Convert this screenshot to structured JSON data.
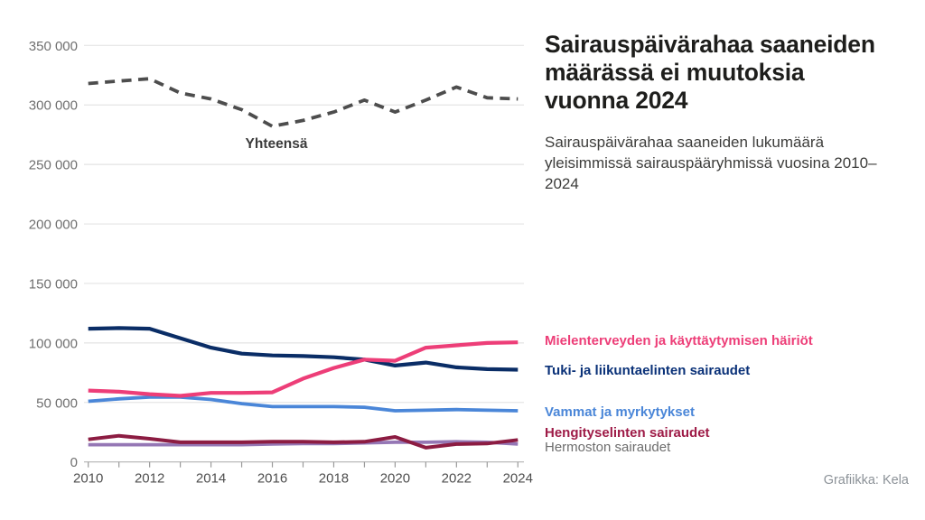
{
  "header": {
    "title": "Sairauspäivärahaa saaneiden määrässä ei muutoksia vuonna 2024",
    "subtitle": "Sairauspäivärahaa saaneiden lukumäärä yleisimmissä sairauspääryhmissä vuosina 2010–2024"
  },
  "credit": "Grafiikka: Kela",
  "legend": {
    "items": [
      {
        "label": "Mielenterveyden ja käyttäytymisen häiriöt",
        "color": "#ed3e78"
      },
      {
        "label": "Tuki- ja liikuntaelinten sairaudet",
        "color": "#0a3178"
      },
      {
        "label": "Vammat ja myrkytykset",
        "color": "#4a86d8"
      },
      {
        "label": "Hengityselinten sairaudet",
        "color": "#9e1b47"
      },
      {
        "label": "Hermoston sairaudet",
        "color": "#6d6d6d"
      }
    ]
  },
  "chart_data": {
    "type": "line",
    "title": "Sairauspäivärahaa saaneiden määrässä ei muutoksia vuonna 2024",
    "xlabel": "",
    "ylabel": "",
    "grid": true,
    "legend_position": "right-of-line-ends",
    "x": [
      2010,
      2011,
      2012,
      2013,
      2014,
      2015,
      2016,
      2017,
      2018,
      2019,
      2020,
      2021,
      2022,
      2023,
      2024
    ],
    "x_tick_labels": [
      "2010",
      "2012",
      "2014",
      "2016",
      "2018",
      "2020",
      "2022",
      "2024"
    ],
    "ylim": [
      0,
      350000
    ],
    "y_ticks": [
      {
        "value": 0,
        "label": "0"
      },
      {
        "value": 50000,
        "label": "50 000"
      },
      {
        "value": 100000,
        "label": "100 000"
      },
      {
        "value": 150000,
        "label": "150 000"
      },
      {
        "value": 200000,
        "label": "200 000"
      },
      {
        "value": 250000,
        "label": "250 000"
      },
      {
        "value": 300000,
        "label": "300 000"
      },
      {
        "value": 350000,
        "label": "350 000"
      }
    ],
    "inline_label": {
      "text": "Yhteensä",
      "series": "Yhteensä",
      "color": "#3c3c3c"
    },
    "series": [
      {
        "name": "Yhteensä",
        "color": "#4d4d4d",
        "dashed": true,
        "width": 3.8,
        "values": [
          318000,
          320000,
          322000,
          310000,
          305000,
          296000,
          282000,
          287000,
          294000,
          304000,
          294000,
          304000,
          315000,
          306000,
          305000
        ]
      },
      {
        "name": "Vammat ja myrkytykset",
        "color": "#4a86d8",
        "dashed": false,
        "width": 3.8,
        "values": [
          51000,
          53000,
          54500,
          54500,
          52500,
          49000,
          46500,
          46500,
          46500,
          46000,
          43000,
          43500,
          44000,
          43500,
          43000
        ]
      },
      {
        "name": "Tuki- ja liikuntaelinten sairaudet",
        "color": "#0a2d66",
        "dashed": false,
        "width": 4.2,
        "values": [
          112000,
          112500,
          112000,
          104000,
          96000,
          91000,
          89500,
          89000,
          88000,
          86000,
          81000,
          83500,
          79500,
          78000,
          77500
        ]
      },
      {
        "name": "Mielenterveyden ja käyttäytymisen häiriöt",
        "color": "#ed3e78",
        "dashed": false,
        "width": 4.2,
        "values": [
          60000,
          59000,
          57000,
          55500,
          58000,
          58000,
          58500,
          70000,
          79000,
          86000,
          85000,
          96000,
          98000,
          100000,
          100500
        ]
      },
      {
        "name": "Hermoston sairaudet",
        "color": "#9577b5",
        "dashed": false,
        "width": 3.8,
        "values": [
          14500,
          14500,
          14500,
          14500,
          14500,
          14500,
          15000,
          15500,
          15500,
          16000,
          16500,
          16500,
          17000,
          16500,
          15000
        ]
      },
      {
        "name": "Hengityselinten sairaudet",
        "color": "#8c1c42",
        "dashed": false,
        "width": 4,
        "values": [
          19000,
          22000,
          19500,
          16500,
          16500,
          16500,
          17000,
          17000,
          16500,
          17000,
          21000,
          12000,
          15000,
          15500,
          18500
        ]
      }
    ]
  }
}
